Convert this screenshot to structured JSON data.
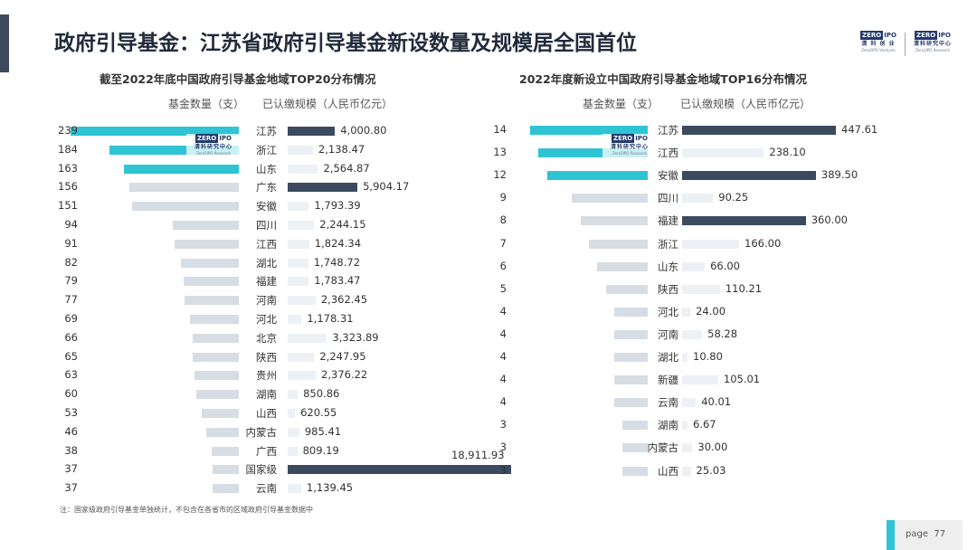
{
  "title": "政府引导基金：江苏省政府引导基金新设数量及规模居全国首位",
  "logo_left": {
    "z": "ZERO",
    "o": "IPO",
    "cn": "清 科 创 业",
    "en": "Zero2IPO Ventures"
  },
  "logo_right": {
    "z": "ZERO",
    "o": "IPO",
    "cn": "清科研究中心",
    "en": "Zero2IPO Research"
  },
  "watermark": {
    "z": "ZERO",
    "o": "IPO",
    "cn": "清科研究中心",
    "en": "Zero2IPO Research"
  },
  "footnote": "注：国家级政府引导基金单独统计，不包含在各省市的区域政府引导基金数据中",
  "page": {
    "label": "page",
    "number": "77"
  },
  "colors": {
    "count_accent": "#2ec4d4",
    "count_muted": "#d6dde5",
    "scale_dark": "#3b4a5e",
    "scale_muted": "#edf1f5"
  },
  "chart_data": [
    {
      "type": "bar",
      "title": "截至2022年底中国政府引导基金地域TOP20分布情况",
      "count_header": "基金数量（支）",
      "scale_header": "已认缴规模（人民币亿元）",
      "categories": [
        "江苏",
        "浙江",
        "山东",
        "广东",
        "安徽",
        "四川",
        "江西",
        "湖北",
        "福建",
        "河南",
        "河北",
        "北京",
        "陕西",
        "贵州",
        "湖南",
        "山西",
        "内蒙古",
        "广西",
        "国家级",
        "云南"
      ],
      "count_labels": [
        "239",
        "184",
        "163",
        "156",
        "151",
        "94",
        "91",
        "82",
        "79",
        "77",
        "69",
        "66",
        "65",
        "63",
        "60",
        "53",
        "46",
        "38",
        "37",
        "37"
      ],
      "scale_labels": [
        "4,000.80",
        "2,138.47",
        "2,564.87",
        "5,904.17",
        "1,793.39",
        "2,244.15",
        "1,824.34",
        "1,748.72",
        "1,783.47",
        "2,362.45",
        "1,178.31",
        "3,323.89",
        "2,247.95",
        "2,376.22",
        "850.86",
        "620.55",
        "985.41",
        "809.19",
        "18,911.93",
        "1,139.45"
      ],
      "series": [
        {
          "values": [
            239,
            184,
            163,
            156,
            151,
            94,
            91,
            82,
            79,
            77,
            69,
            66,
            65,
            63,
            60,
            53,
            46,
            38,
            37,
            37
          ]
        },
        {
          "values": [
            4000.8,
            2138.47,
            2564.87,
            5904.17,
            1793.39,
            2244.15,
            1824.34,
            1748.72,
            1783.47,
            2362.45,
            1178.31,
            3323.89,
            2247.95,
            2376.22,
            850.86,
            620.55,
            985.41,
            809.19,
            18911.93,
            1139.45
          ]
        }
      ],
      "highlight_count": [
        true,
        true,
        true,
        false,
        false,
        false,
        false,
        false,
        false,
        false,
        false,
        false,
        false,
        false,
        false,
        false,
        false,
        false,
        false,
        false
      ],
      "highlight_scale": [
        true,
        false,
        false,
        true,
        false,
        false,
        false,
        false,
        false,
        false,
        false,
        false,
        false,
        false,
        false,
        false,
        false,
        false,
        true,
        false
      ]
    },
    {
      "type": "bar",
      "title": "2022年度新设立中国政府引导基金地域TOP16分布情况",
      "count_header": "基金数量（支）",
      "scale_header": "已认缴规模（人民币亿元）",
      "categories": [
        "江苏",
        "江西",
        "安徽",
        "四川",
        "福建",
        "浙江",
        "山东",
        "陕西",
        "河北",
        "河南",
        "湖北",
        "新疆",
        "云南",
        "湖南",
        "内蒙古",
        "山西"
      ],
      "count_labels": [
        "14",
        "13",
        "12",
        "9",
        "8",
        "7",
        "6",
        "5",
        "4",
        "4",
        "4",
        "4",
        "4",
        "3",
        "3",
        "3"
      ],
      "scale_labels": [
        "447.61",
        "238.10",
        "389.50",
        "90.25",
        "360.00",
        "166.00",
        "66.00",
        "110.21",
        "24.00",
        "58.28",
        "10.80",
        "105.01",
        "40.01",
        "6.67",
        "30.00",
        "25.03"
      ],
      "series": [
        {
          "values": [
            14,
            13,
            12,
            9,
            8,
            7,
            6,
            5,
            4,
            4,
            4,
            4,
            4,
            3,
            3,
            3
          ]
        },
        {
          "values": [
            447.61,
            238.1,
            389.5,
            90.25,
            360.0,
            166.0,
            66.0,
            110.21,
            24.0,
            58.28,
            10.8,
            105.01,
            40.01,
            6.67,
            30.0,
            25.03
          ]
        }
      ],
      "highlight_count": [
        true,
        true,
        true,
        false,
        false,
        false,
        false,
        false,
        false,
        false,
        false,
        false,
        false,
        false,
        false,
        false
      ],
      "highlight_scale": [
        true,
        false,
        true,
        false,
        true,
        false,
        false,
        false,
        false,
        false,
        false,
        false,
        false,
        false,
        false,
        false
      ]
    }
  ]
}
